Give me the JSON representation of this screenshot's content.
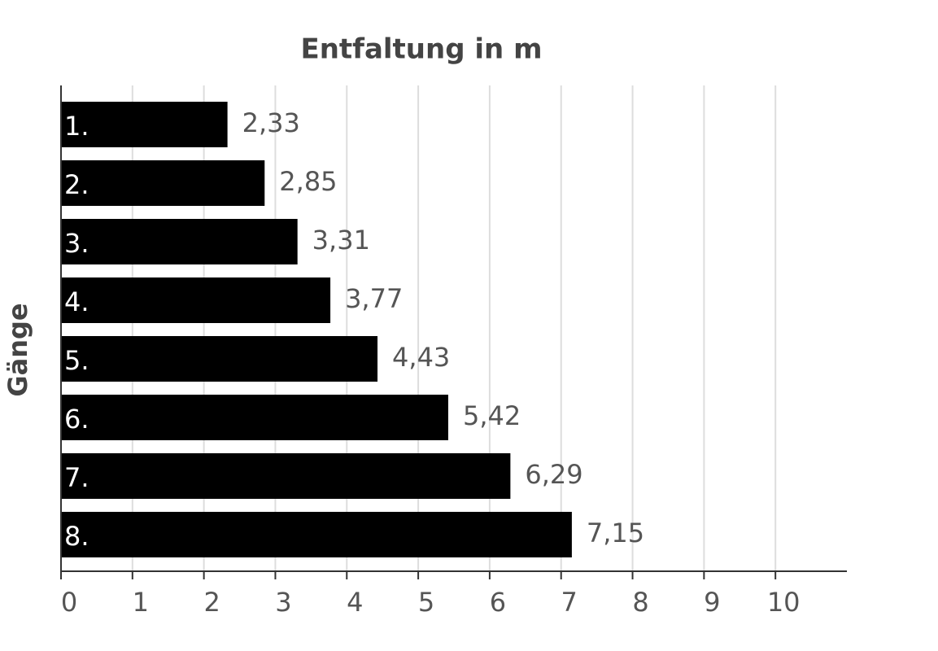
{
  "chart_data": {
    "type": "bar",
    "orientation": "horizontal",
    "title": "Entfaltung in m",
    "y_label": "Gänge",
    "categories": [
      "1.",
      "2.",
      "3.",
      "4.",
      "5.",
      "6.",
      "7.",
      "8."
    ],
    "values": [
      2.33,
      2.85,
      3.31,
      3.77,
      4.43,
      5.42,
      6.29,
      7.15
    ],
    "value_labels": [
      "2,33",
      "2,85",
      "3,31",
      "3,77",
      "4,43",
      "5,42",
      "6,29",
      "7,15"
    ],
    "color": "#000000",
    "xlim": [
      0,
      11
    ],
    "xticks": [
      0,
      1,
      2,
      3,
      4,
      5,
      6,
      7,
      8,
      9,
      10
    ],
    "grid": true
  }
}
